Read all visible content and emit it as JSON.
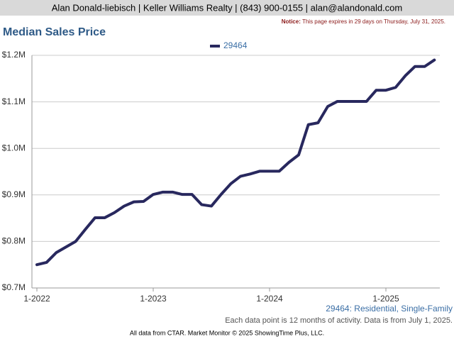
{
  "header": "Alan Donald-liebisch | Keller Williams Realty | (843) 900-0155 | alan@alandonald.com",
  "notice": {
    "label": "Notice:",
    "text": "This page expires in 29 days on Thursday, July 31, 2025."
  },
  "chart_data": {
    "type": "line",
    "title": "Median Sales Price",
    "categories": [
      "1-2022",
      null,
      null,
      null,
      null,
      null,
      null,
      null,
      null,
      null,
      null,
      null,
      "1-2023",
      null,
      null,
      null,
      null,
      null,
      null,
      null,
      null,
      null,
      null,
      null,
      "1-2024",
      null,
      null,
      null,
      null,
      null,
      null,
      null,
      null,
      null,
      null,
      null,
      "1-2025",
      null,
      null,
      null,
      null,
      null
    ],
    "series": [
      {
        "name": "29464",
        "color": "#28285e",
        "values": [
          750000,
          755000,
          776000,
          788000,
          800000,
          826000,
          851000,
          851000,
          862000,
          876000,
          885000,
          886000,
          901000,
          906000,
          906000,
          901000,
          901000,
          879000,
          876000,
          901000,
          924000,
          940000,
          945000,
          951000,
          951000,
          951000,
          970000,
          986000,
          1051000,
          1055000,
          1090000,
          1101000,
          1101000,
          1101000,
          1101000,
          1125000,
          1125000,
          1131000,
          1156000,
          1176000,
          1176000,
          1190000
        ]
      }
    ],
    "ylim": [
      700000,
      1200000
    ],
    "yticks": [
      {
        "value": 700000,
        "label": "$0.7M"
      },
      {
        "value": 800000,
        "label": "$0.8M"
      },
      {
        "value": 900000,
        "label": "$0.9M"
      },
      {
        "value": 1000000,
        "label": "$1.0M"
      },
      {
        "value": 1100000,
        "label": "$1.1M"
      },
      {
        "value": 1200000,
        "label": "$1.2M"
      }
    ],
    "grid": true,
    "legend": "top"
  },
  "series_note": "29464: Residential, Single-Family",
  "data_note": "Each data point is 12 months of activity. Data is from July 1, 2025.",
  "footer": "All data from CTAR. Market Monitor © 2025 ShowingTime Plus, LLC."
}
